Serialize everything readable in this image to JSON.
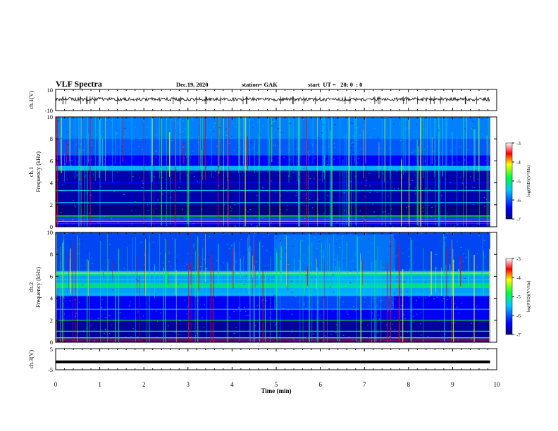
{
  "header": {
    "title": "VLF Spectra",
    "date": "Dec.19, 2020",
    "station": "station= GAK",
    "start": "start  UT =   20: 0  : 0"
  },
  "chart_data": [
    {
      "type": "line",
      "panel": "ch1-waveform",
      "ylabel": "ch.1(V)",
      "yticks": [
        "10",
        "-10"
      ],
      "ylim": [
        -10,
        10
      ],
      "description_values": {
        "level_mean": 0,
        "band": [
          -2,
          2
        ]
      }
    },
    {
      "type": "heatmap",
      "panel": "ch1-spectrogram",
      "ylabel_top": "ch.1",
      "ylabel": "Frequency  (kHz)",
      "yticks": [
        "0",
        "2",
        "4",
        "6",
        "8",
        "10"
      ],
      "ylim": [
        0,
        10
      ],
      "colorbar": {
        "label": "log(PSD)(V²/Hz)",
        "ticks": [
          "-3",
          "-4",
          "-5",
          "-6",
          "-7"
        ],
        "range": [
          -7,
          -3
        ]
      }
    },
    {
      "type": "heatmap",
      "panel": "ch2-spectrogram",
      "ylabel_top": "ch.2",
      "ylabel": "Frequency  (kHz)",
      "yticks": [
        "0",
        "2",
        "4",
        "6",
        "8",
        "10"
      ],
      "ylim": [
        0,
        10
      ],
      "colorbar": {
        "label": "log(PSD)(V²/Hz)",
        "ticks": [
          "-3",
          "-4",
          "-5",
          "-6",
          "-7"
        ],
        "range": [
          -7,
          -3
        ]
      }
    },
    {
      "type": "line",
      "panel": "ch3-waveform",
      "ylabel": "ch.3(V)",
      "yticks": [
        "5",
        "-5"
      ],
      "ylim": [
        -5,
        5
      ],
      "description_values": {
        "level_mean": -1.3
      }
    }
  ],
  "xaxis": {
    "label": "Time  (min)",
    "ticks": [
      "0",
      "1",
      "2",
      "3",
      "4",
      "5",
      "6",
      "7",
      "8",
      "9",
      "10"
    ],
    "xlim": [
      0,
      10
    ],
    "data_end": 9.85
  },
  "colors": {
    "dark": "#000080",
    "blue": "#0000ff",
    "cyan": "#00c8ff",
    "green": "#00ff40",
    "yellow": "#ffff00",
    "red": "#ff0000"
  }
}
